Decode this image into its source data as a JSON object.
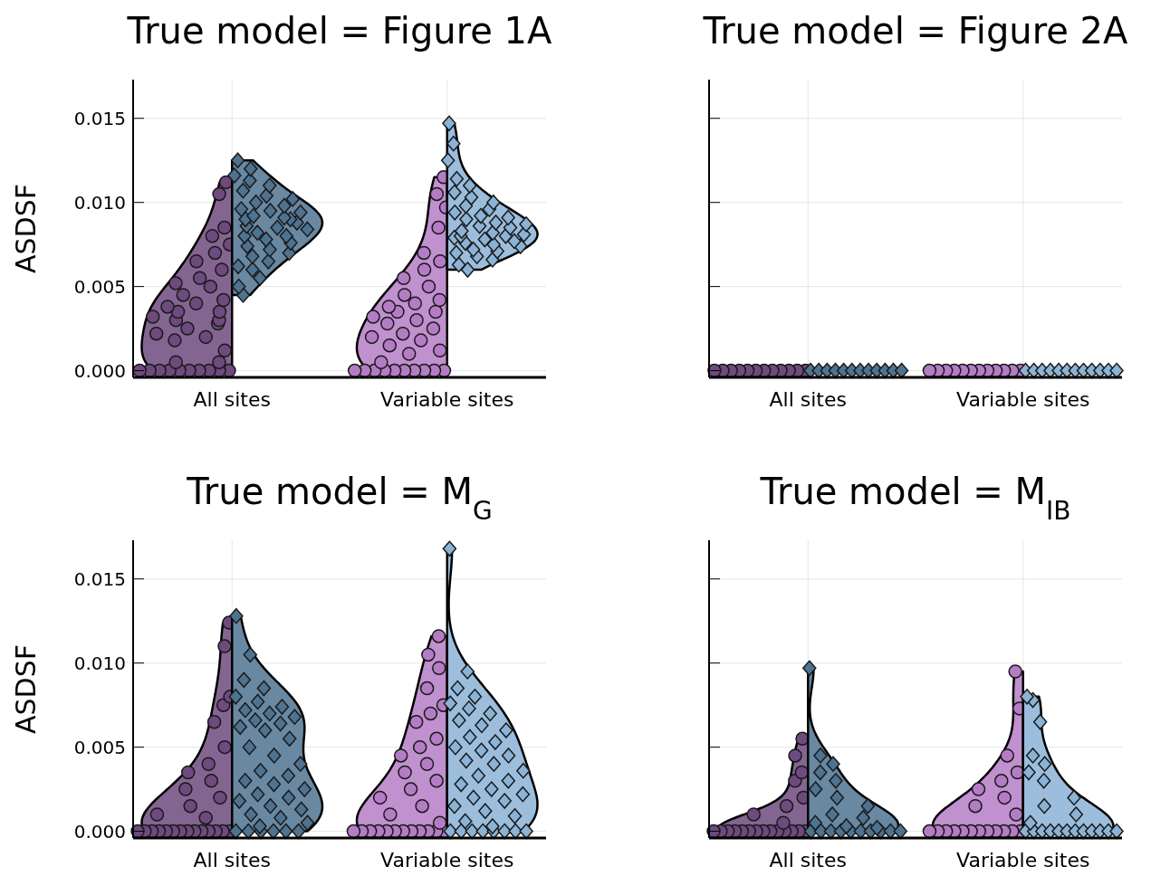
{
  "chart_data": [
    {
      "type": "scatter",
      "title": "True model = Figure 1A",
      "ylabel": "ASDSF",
      "categories": [
        "All sites",
        "Variable sites"
      ],
      "ylim": [
        -0.0004,
        0.0173
      ],
      "yticks": [
        {
          "value": 0,
          "label": "0.000"
        },
        {
          "value": 0.005,
          "label": "0.005"
        },
        {
          "value": 0.01,
          "label": "0.010"
        },
        {
          "value": 0.015,
          "label": "0.015"
        }
      ],
      "grid": true,
      "series": [
        {
          "x": [
            "All sites",
            "All sites",
            "All sites",
            "All sites",
            "All sites",
            "All sites",
            "All sites",
            "All sites",
            "All sites",
            "All sites",
            "All sites",
            "All sites",
            "All sites",
            "All sites",
            "All sites",
            "All sites",
            "All sites",
            "All sites",
            "All sites",
            "All sites",
            "All sites",
            "All sites",
            "All sites",
            "All sites",
            "All sites",
            "All sites",
            "All sites",
            "All sites",
            "All sites",
            "All sites",
            "All sites",
            "All sites",
            "All sites",
            "All sites",
            "All sites",
            "All sites",
            "All sites",
            "All sites"
          ],
          "marker": "circle",
          "color": "#6e4a7e",
          "values": [
            0,
            0,
            0,
            0,
            0,
            0,
            0,
            0,
            0,
            0,
            0.0005,
            0.0005,
            0.0012,
            0.0018,
            0.002,
            0.0022,
            0.0025,
            0.0028,
            0.003,
            0.003,
            0.0032,
            0.0035,
            0.0035,
            0.0038,
            0.004,
            0.0042,
            0.0045,
            0.005,
            0.0052,
            0.0055,
            0.006,
            0.0065,
            0.007,
            0.0075,
            0.008,
            0.0085,
            0.0105,
            0.0112
          ]
        },
        {
          "x": [
            "All sites",
            "All sites",
            "All sites",
            "All sites",
            "All sites",
            "All sites",
            "All sites",
            "All sites",
            "All sites",
            "All sites",
            "All sites",
            "All sites",
            "All sites",
            "All sites",
            "All sites",
            "All sites",
            "All sites",
            "All sites",
            "All sites",
            "All sites",
            "All sites",
            "All sites",
            "All sites",
            "All sites",
            "All sites",
            "All sites",
            "All sites",
            "All sites",
            "All sites",
            "All sites",
            "All sites",
            "All sites",
            "All sites",
            "All sites",
            "All sites",
            "All sites"
          ],
          "marker": "diamond",
          "color": "#4e7391",
          "values": [
            0.0045,
            0.005,
            0.0055,
            0.006,
            0.0062,
            0.0065,
            0.0068,
            0.007,
            0.0072,
            0.0074,
            0.0076,
            0.0078,
            0.008,
            0.008,
            0.0082,
            0.0084,
            0.0085,
            0.0086,
            0.0088,
            0.009,
            0.009,
            0.0091,
            0.0092,
            0.0094,
            0.0095,
            0.0096,
            0.0098,
            0.01,
            0.0102,
            0.0104,
            0.0107,
            0.011,
            0.0113,
            0.0116,
            0.012,
            0.0125
          ]
        },
        {
          "x": [
            "Variable sites",
            "Variable sites",
            "Variable sites",
            "Variable sites",
            "Variable sites",
            "Variable sites",
            "Variable sites",
            "Variable sites",
            "Variable sites",
            "Variable sites",
            "Variable sites",
            "Variable sites",
            "Variable sites",
            "Variable sites",
            "Variable sites",
            "Variable sites",
            "Variable sites",
            "Variable sites",
            "Variable sites",
            "Variable sites",
            "Variable sites",
            "Variable sites",
            "Variable sites",
            "Variable sites",
            "Variable sites",
            "Variable sites",
            "Variable sites",
            "Variable sites",
            "Variable sites",
            "Variable sites",
            "Variable sites",
            "Variable sites",
            "Variable sites",
            "Variable sites",
            "Variable sites",
            "Variable sites"
          ],
          "marker": "circle",
          "color": "#b57cc6",
          "values": [
            0,
            0,
            0,
            0,
            0,
            0,
            0,
            0,
            0,
            0,
            0.0005,
            0.001,
            0.0012,
            0.0015,
            0.0018,
            0.002,
            0.0022,
            0.0025,
            0.0028,
            0.003,
            0.0032,
            0.0035,
            0.0035,
            0.0038,
            0.004,
            0.0042,
            0.0045,
            0.005,
            0.0055,
            0.006,
            0.0065,
            0.007,
            0.0085,
            0.0097,
            0.0105,
            0.0115
          ]
        },
        {
          "x": [
            "Variable sites",
            "Variable sites",
            "Variable sites",
            "Variable sites",
            "Variable sites",
            "Variable sites",
            "Variable sites",
            "Variable sites",
            "Variable sites",
            "Variable sites",
            "Variable sites",
            "Variable sites",
            "Variable sites",
            "Variable sites",
            "Variable sites",
            "Variable sites",
            "Variable sites",
            "Variable sites",
            "Variable sites",
            "Variable sites",
            "Variable sites",
            "Variable sites",
            "Variable sites",
            "Variable sites",
            "Variable sites",
            "Variable sites",
            "Variable sites",
            "Variable sites",
            "Variable sites",
            "Variable sites",
            "Variable sites",
            "Variable sites",
            "Variable sites",
            "Variable sites",
            "Variable sites",
            "Variable sites"
          ],
          "marker": "diamond",
          "color": "#8ab3d6",
          "values": [
            0.006,
            0.0063,
            0.0066,
            0.0068,
            0.007,
            0.0071,
            0.0072,
            0.0074,
            0.0075,
            0.0076,
            0.0077,
            0.0078,
            0.0079,
            0.008,
            0.008,
            0.0081,
            0.0082,
            0.0083,
            0.0085,
            0.0086,
            0.0087,
            0.0088,
            0.009,
            0.0091,
            0.0092,
            0.0094,
            0.0096,
            0.0098,
            0.01,
            0.0103,
            0.0106,
            0.011,
            0.0114,
            0.0125,
            0.0135,
            0.0147
          ]
        }
      ]
    },
    {
      "type": "scatter",
      "title": "True model = Figure 2A",
      "categories": [
        "All sites",
        "Variable sites"
      ],
      "ylim": [
        -0.0004,
        0.0173
      ],
      "yticks": [
        0,
        0.005,
        0.01,
        0.015
      ],
      "tick_labels": "x",
      "grid": true,
      "series": [
        {
          "x": [
            "All sites",
            "All sites",
            "All sites",
            "All sites",
            "All sites",
            "All sites",
            "All sites",
            "All sites",
            "All sites",
            "All sites",
            "All sites",
            "All sites"
          ],
          "marker": "circle",
          "color": "#6e4a7e",
          "values": [
            0,
            0,
            0,
            0,
            0,
            0,
            0,
            0,
            0,
            0,
            0,
            0
          ]
        },
        {
          "x": [
            "All sites",
            "All sites",
            "All sites",
            "All sites",
            "All sites",
            "All sites",
            "All sites",
            "All sites",
            "All sites",
            "All sites",
            "All sites",
            "All sites"
          ],
          "marker": "diamond",
          "color": "#4e7391",
          "values": [
            0,
            0,
            0,
            0,
            0,
            0,
            0,
            0,
            0,
            0,
            0,
            0
          ]
        },
        {
          "x": [
            "Variable sites",
            "Variable sites",
            "Variable sites",
            "Variable sites",
            "Variable sites",
            "Variable sites",
            "Variable sites",
            "Variable sites",
            "Variable sites",
            "Variable sites",
            "Variable sites",
            "Variable sites"
          ],
          "marker": "circle",
          "color": "#b57cc6",
          "values": [
            0,
            0,
            0,
            0,
            0,
            0,
            0,
            0,
            0,
            0,
            0,
            0
          ]
        },
        {
          "x": [
            "Variable sites",
            "Variable sites",
            "Variable sites",
            "Variable sites",
            "Variable sites",
            "Variable sites",
            "Variable sites",
            "Variable sites",
            "Variable sites",
            "Variable sites",
            "Variable sites",
            "Variable sites"
          ],
          "marker": "diamond",
          "color": "#8ab3d6",
          "values": [
            0,
            0,
            0,
            0,
            0,
            0,
            0,
            0,
            0,
            0,
            0,
            0
          ]
        }
      ]
    },
    {
      "type": "scatter",
      "title": "True model = M$_{G}$",
      "ylabel": "ASDSF",
      "categories": [
        "All sites",
        "Variable sites"
      ],
      "ylim": [
        -0.0004,
        0.0173
      ],
      "yticks": [
        {
          "value": 0,
          "label": "0.000"
        },
        {
          "value": 0.005,
          "label": "0.005"
        },
        {
          "value": 0.01,
          "label": "0.010"
        },
        {
          "value": 0.015,
          "label": "0.015"
        }
      ],
      "grid": true,
      "series": [
        {
          "x": [
            "All sites",
            "All sites",
            "All sites",
            "All sites",
            "All sites",
            "All sites",
            "All sites",
            "All sites",
            "All sites",
            "All sites",
            "All sites",
            "All sites",
            "All sites",
            "All sites",
            "All sites",
            "All sites",
            "All sites",
            "All sites",
            "All sites",
            "All sites",
            "All sites",
            "All sites",
            "All sites",
            "All sites",
            "All sites",
            "All sites",
            "All sites",
            "All sites"
          ],
          "marker": "circle",
          "color": "#6e4a7e",
          "values": [
            0,
            0,
            0,
            0,
            0,
            0,
            0,
            0,
            0,
            0,
            0,
            0,
            0,
            0,
            0.0008,
            0.001,
            0.0015,
            0.002,
            0.0025,
            0.003,
            0.0035,
            0.004,
            0.005,
            0.0065,
            0.0075,
            0.008,
            0.011,
            0.0124
          ]
        },
        {
          "x": [
            "All sites",
            "All sites",
            "All sites",
            "All sites",
            "All sites",
            "All sites",
            "All sites",
            "All sites",
            "All sites",
            "All sites",
            "All sites",
            "All sites",
            "All sites",
            "All sites",
            "All sites",
            "All sites",
            "All sites",
            "All sites",
            "All sites",
            "All sites",
            "All sites",
            "All sites",
            "All sites",
            "All sites",
            "All sites",
            "All sites",
            "All sites",
            "All sites",
            "All sites",
            "All sites",
            "All sites",
            "All sites",
            "All sites",
            "All sites",
            "All sites",
            "All sites",
            "All sites",
            "All sites"
          ],
          "marker": "diamond",
          "color": "#4e7391",
          "values": [
            0,
            0,
            0,
            0,
            0,
            0,
            0.0003,
            0.0005,
            0.0008,
            0.001,
            0.0013,
            0.0015,
            0.0018,
            0.002,
            0.0022,
            0.0025,
            0.0028,
            0.003,
            0.0033,
            0.0036,
            0.004,
            0.0045,
            0.005,
            0.0055,
            0.006,
            0.0062,
            0.0064,
            0.0066,
            0.0068,
            0.007,
            0.0072,
            0.0074,
            0.0077,
            0.008,
            0.0085,
            0.009,
            0.0105,
            0.0128
          ]
        },
        {
          "x": [
            "Variable sites",
            "Variable sites",
            "Variable sites",
            "Variable sites",
            "Variable sites",
            "Variable sites",
            "Variable sites",
            "Variable sites",
            "Variable sites",
            "Variable sites",
            "Variable sites",
            "Variable sites",
            "Variable sites",
            "Variable sites",
            "Variable sites",
            "Variable sites",
            "Variable sites",
            "Variable sites",
            "Variable sites",
            "Variable sites",
            "Variable sites",
            "Variable sites",
            "Variable sites",
            "Variable sites",
            "Variable sites",
            "Variable sites",
            "Variable sites",
            "Variable sites",
            "Variable sites",
            "Variable sites"
          ],
          "marker": "circle",
          "color": "#b57cc6",
          "values": [
            0,
            0,
            0,
            0,
            0,
            0,
            0,
            0,
            0,
            0,
            0,
            0,
            0.0005,
            0.001,
            0.0015,
            0.002,
            0.0025,
            0.003,
            0.0035,
            0.004,
            0.0045,
            0.005,
            0.0055,
            0.0065,
            0.007,
            0.0075,
            0.0085,
            0.0097,
            0.0105,
            0.0116
          ]
        },
        {
          "x": [
            "Variable sites",
            "Variable sites",
            "Variable sites",
            "Variable sites",
            "Variable sites",
            "Variable sites",
            "Variable sites",
            "Variable sites",
            "Variable sites",
            "Variable sites",
            "Variable sites",
            "Variable sites",
            "Variable sites",
            "Variable sites",
            "Variable sites",
            "Variable sites",
            "Variable sites",
            "Variable sites",
            "Variable sites",
            "Variable sites",
            "Variable sites",
            "Variable sites",
            "Variable sites",
            "Variable sites",
            "Variable sites",
            "Variable sites",
            "Variable sites",
            "Variable sites",
            "Variable sites",
            "Variable sites",
            "Variable sites",
            "Variable sites",
            "Variable sites",
            "Variable sites",
            "Variable sites",
            "Variable sites",
            "Variable sites",
            "Variable sites"
          ],
          "marker": "diamond",
          "color": "#8ab3d6",
          "values": [
            0,
            0,
            0,
            0,
            0,
            0,
            0,
            0,
            0.0003,
            0.0006,
            0.0009,
            0.0012,
            0.0015,
            0.0018,
            0.002,
            0.0022,
            0.0025,
            0.0028,
            0.003,
            0.0033,
            0.0036,
            0.004,
            0.0042,
            0.0045,
            0.0048,
            0.005,
            0.0053,
            0.0056,
            0.006,
            0.0063,
            0.0066,
            0.007,
            0.0073,
            0.0076,
            0.008,
            0.0085,
            0.0095,
            0.0168
          ]
        }
      ]
    },
    {
      "type": "scatter",
      "title": "True model = M$_{IB}$",
      "categories": [
        "All sites",
        "Variable sites"
      ],
      "ylim": [
        -0.0004,
        0.0173
      ],
      "yticks": [
        0,
        0.005,
        0.01,
        0.015
      ],
      "tick_labels": "x",
      "grid": true,
      "series": [
        {
          "x": [
            "All sites",
            "All sites",
            "All sites",
            "All sites",
            "All sites",
            "All sites",
            "All sites",
            "All sites",
            "All sites",
            "All sites",
            "All sites",
            "All sites",
            "All sites",
            "All sites",
            "All sites",
            "All sites",
            "All sites",
            "All sites",
            "All sites",
            "All sites",
            "All sites",
            "All sites"
          ],
          "marker": "circle",
          "color": "#6e4a7e",
          "values": [
            0,
            0,
            0,
            0,
            0,
            0,
            0,
            0,
            0,
            0,
            0,
            0,
            0,
            0,
            0.0005,
            0.001,
            0.0015,
            0.002,
            0.003,
            0.0035,
            0.0045,
            0.0055
          ]
        },
        {
          "x": [
            "All sites",
            "All sites",
            "All sites",
            "All sites",
            "All sites",
            "All sites",
            "All sites",
            "All sites",
            "All sites",
            "All sites",
            "All sites",
            "All sites",
            "All sites",
            "All sites",
            "All sites",
            "All sites",
            "All sites",
            "All sites",
            "All sites",
            "All sites",
            "All sites",
            "All sites",
            "All sites"
          ],
          "marker": "diamond",
          "color": "#4e7391",
          "values": [
            0,
            0,
            0,
            0,
            0,
            0,
            0,
            0,
            0,
            0,
            0.0002,
            0.0003,
            0.0005,
            0.0008,
            0.001,
            0.0015,
            0.002,
            0.0025,
            0.003,
            0.0035,
            0.004,
            0.0045,
            0.0097
          ]
        },
        {
          "x": [
            "Variable sites",
            "Variable sites",
            "Variable sites",
            "Variable sites",
            "Variable sites",
            "Variable sites",
            "Variable sites",
            "Variable sites",
            "Variable sites",
            "Variable sites",
            "Variable sites",
            "Variable sites",
            "Variable sites",
            "Variable sites",
            "Variable sites",
            "Variable sites",
            "Variable sites",
            "Variable sites",
            "Variable sites",
            "Variable sites",
            "Variable sites"
          ],
          "marker": "circle",
          "color": "#b57cc6",
          "values": [
            0,
            0,
            0,
            0,
            0,
            0,
            0,
            0,
            0,
            0,
            0,
            0,
            0.001,
            0.0015,
            0.002,
            0.0025,
            0.003,
            0.0035,
            0.0045,
            0.0073,
            0.0095
          ]
        },
        {
          "x": [
            "Variable sites",
            "Variable sites",
            "Variable sites",
            "Variable sites",
            "Variable sites",
            "Variable sites",
            "Variable sites",
            "Variable sites",
            "Variable sites",
            "Variable sites",
            "Variable sites",
            "Variable sites",
            "Variable sites",
            "Variable sites",
            "Variable sites",
            "Variable sites",
            "Variable sites",
            "Variable sites",
            "Variable sites",
            "Variable sites",
            "Variable sites",
            "Variable sites",
            "Variable sites"
          ],
          "marker": "diamond",
          "color": "#8ab3d6",
          "values": [
            0,
            0,
            0,
            0,
            0,
            0,
            0,
            0,
            0,
            0,
            0,
            0,
            0.0005,
            0.001,
            0.0015,
            0.002,
            0.003,
            0.0035,
            0.004,
            0.0045,
            0.0065,
            0.0078,
            0.008
          ]
        }
      ]
    }
  ]
}
